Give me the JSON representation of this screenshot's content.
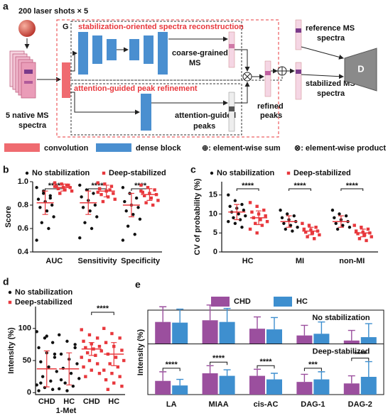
{
  "diagram": {
    "panel": "a",
    "title_top": "200 laser shots × 5",
    "input_label_lines": [
      "5 native MS",
      "spectra"
    ],
    "generator_label": "G",
    "branch1": "stabilization-oriented spectra reconstruction",
    "coarse_lines": [
      "coarse-grained",
      "MS"
    ],
    "branch2": "attention-guided peak refinement",
    "attention_lines": [
      "attention-guided",
      "peaks"
    ],
    "refined_lines": [
      "refined",
      "peaks"
    ],
    "reference_lines": [
      "reference MS",
      "spectra"
    ],
    "stabilized_lines": [
      "stabilized MS",
      "spectra"
    ],
    "discriminator": "D",
    "legend": [
      "convolution",
      "dense block",
      "⊕: element-wise sum",
      "⊗: element-wise product"
    ]
  },
  "chart_data": [
    {
      "type": "dot",
      "panel": "b",
      "ylabel": "Score",
      "categories": [
        "AUC",
        "Sensitivity",
        "Specificity"
      ],
      "ylim": [
        0.4,
        1.0
      ],
      "yticks": [
        {
          "value": 0.4,
          "label": "0.4"
        },
        {
          "value": 0.6,
          "label": "0.6"
        },
        {
          "value": 0.8,
          "label": "0.8"
        },
        {
          "value": 1.0,
          "label": "1.0"
        }
      ],
      "summary_color": "#e8383d",
      "significance": [
        "****",
        "****",
        "****"
      ],
      "series": [
        {
          "name": "No stabilization",
          "color": "#111111",
          "marker": "circle",
          "points": [
            [
              0.95,
              0.9,
              0.88,
              0.85,
              0.83,
              0.8,
              0.78,
              0.75,
              0.7,
              0.65,
              0.6,
              0.5,
              0.92,
              0.86
            ],
            [
              0.97,
              0.93,
              0.9,
              0.87,
              0.84,
              0.8,
              0.78,
              0.75,
              0.7,
              0.65,
              0.6,
              0.52
            ],
            [
              0.95,
              0.9,
              0.86,
              0.83,
              0.8,
              0.78,
              0.75,
              0.72,
              0.68,
              0.62,
              0.55,
              0.5
            ]
          ],
          "mean": [
            0.82,
            0.82,
            0.8
          ],
          "sd": [
            0.1,
            0.1,
            0.1
          ]
        },
        {
          "name": "Deep-stabilized",
          "color": "#e8383d",
          "marker": "square",
          "points": [
            [
              0.99,
              0.98,
              0.97,
              0.96,
              0.95,
              0.95,
              0.94,
              0.93,
              0.92,
              0.9,
              0.97,
              0.96
            ],
            [
              0.99,
              0.98,
              0.96,
              0.94,
              0.92,
              0.9,
              0.89,
              0.87,
              0.85,
              0.83,
              0.93,
              0.91
            ],
            [
              0.97,
              0.95,
              0.93,
              0.91,
              0.9,
              0.89,
              0.88,
              0.86,
              0.84,
              0.82,
              0.8,
              0.92
            ]
          ],
          "mean": [
            0.95,
            0.92,
            0.89
          ],
          "sd": [
            0.03,
            0.05,
            0.05
          ]
        }
      ]
    },
    {
      "type": "dot",
      "panel": "c",
      "ylabel": "CV of probability (%)",
      "categories": [
        "HC",
        "MI",
        "non-MI"
      ],
      "ylim": [
        0,
        18.5
      ],
      "yticks": [
        0,
        5,
        10,
        15
      ],
      "summary_color": "#e8383d",
      "significance": [
        "****",
        "****",
        "****"
      ],
      "series": [
        {
          "name": "No stabilization",
          "color": "#111111",
          "marker": "circle",
          "points": [
            [
              15,
              13.5,
              12.5,
              12,
              11.5,
              11,
              10.5,
              10,
              9.5,
              9,
              8.5,
              8,
              7.5,
              6.5
            ],
            [
              11,
              10,
              9.5,
              9,
              8.5,
              8,
              7.5,
              7,
              6.5,
              6,
              5.5
            ],
            [
              11,
              10,
              9.5,
              9,
              8.5,
              8,
              7.5,
              7,
              6.5,
              6
            ]
          ],
          "mean": [
            10.5,
            8,
            8
          ],
          "sd": [
            2,
            1.5,
            1.5
          ]
        },
        {
          "name": "Deep-stabilized",
          "color": "#e8383d",
          "marker": "square",
          "points": [
            [
              13,
              12,
              11,
              10.5,
              10,
              9.5,
              9,
              8.5,
              8,
              7.5,
              7,
              6,
              5
            ],
            [
              7.5,
              7,
              6.5,
              6,
              5.8,
              5.5,
              5.2,
              5,
              4.5,
              4,
              3.5
            ],
            [
              7,
              6.5,
              6,
              5.5,
              5.2,
              5,
              4.8,
              4.5,
              4,
              3.5,
              3
            ]
          ],
          "mean": [
            9,
            5.5,
            5
          ],
          "sd": [
            1.8,
            1,
            1
          ]
        }
      ]
    },
    {
      "type": "dot",
      "panel": "d",
      "ylabel": "Intensity (%)",
      "group_label": "1-Met",
      "ylim": [
        -3,
        134
      ],
      "yticks": [
        0,
        50,
        100
      ],
      "summary_color": "#e8383d",
      "significance": "****",
      "series": [
        {
          "name": "No stabilization",
          "color": "#111111",
          "marker": "circle",
          "categories": [
            "CHD",
            "HC"
          ],
          "points": [
            [
              95,
              85,
              78,
              70,
              62,
              55,
              48,
              40,
              33,
              25,
              18,
              12,
              8,
              5,
              3,
              88,
              60,
              15
            ],
            [
              90,
              80,
              70,
              60,
              52,
              45,
              38,
              30,
              22,
              15,
              10,
              6,
              3,
              75,
              20
            ]
          ],
          "mean": [
            37,
            37
          ],
          "sd": [
            28,
            25
          ]
        },
        {
          "name": "Deep-stabilized",
          "color": "#e8383d",
          "marker": "square",
          "categories": [
            "CHD",
            "HC"
          ],
          "points": [
            [
              98,
              90,
              85,
              80,
              76,
              72,
              70,
              68,
              65,
              62,
              58,
              55,
              50,
              45,
              40,
              35,
              30,
              25
            ],
            [
              100,
              92,
              85,
              78,
              72,
              66,
              60,
              55,
              50,
              45,
              40,
              35,
              30,
              25,
              20,
              15,
              10,
              5
            ]
          ],
          "mean": [
            68,
            60
          ],
          "sd": [
            10,
            18
          ]
        }
      ]
    },
    {
      "type": "bar",
      "panel": "e",
      "ylabel": "Intensity (%)",
      "categories": [
        "LA",
        "MIAA",
        "cis-AC",
        "DAG-1",
        "DAG-2"
      ],
      "series": [
        {
          "name": "CHD",
          "color": "#9b4f9e"
        },
        {
          "name": "HC",
          "color": "#3e8fcf"
        }
      ],
      "subplots": [
        {
          "title": "No stabilization",
          "ylim": [
            0,
            1
          ],
          "values": [
            [
              0.65,
              0.7,
              0.45,
              0.25,
              0.1
            ],
            [
              0.63,
              0.65,
              0.43,
              0.3,
              0.2
            ]
          ],
          "errors": [
            [
              0.45,
              0.45,
              0.35,
              0.3,
              0.3
            ],
            [
              0.4,
              0.4,
              0.35,
              0.35,
              0.4
            ]
          ]
        },
        {
          "title": "Deep-stabilized",
          "ylim": [
            0,
            1
          ],
          "values": [
            [
              0.27,
              0.42,
              0.37,
              0.25,
              0.22
            ],
            [
              0.18,
              0.37,
              0.3,
              0.3,
              0.35
            ]
          ],
          "errors": [
            [
              0.18,
              0.15,
              0.13,
              0.15,
              0.15
            ],
            [
              0.12,
              0.12,
              0.12,
              0.15,
              0.3
            ]
          ],
          "significance": [
            "****",
            "****",
            "****",
            "***",
            "****"
          ]
        }
      ]
    }
  ]
}
